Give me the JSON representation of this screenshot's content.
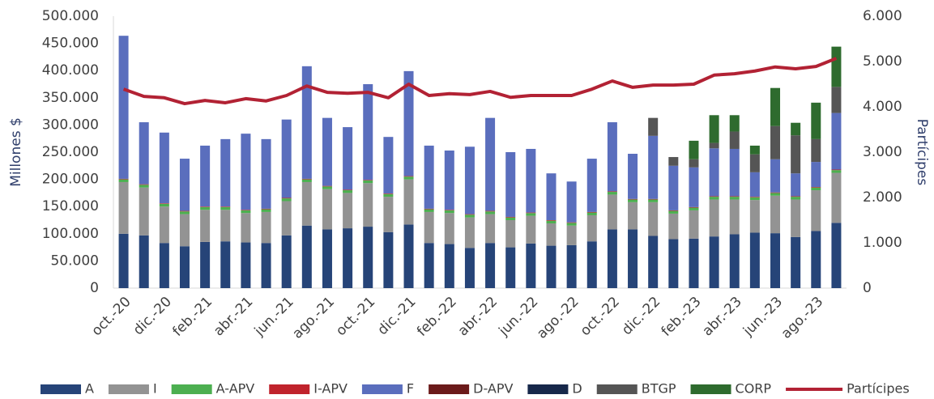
{
  "chart_data": {
    "type": "bar",
    "stacked": true,
    "y_label": "Millones $",
    "y2_label": "Partícipes",
    "categories": [
      "oct.-20",
      null,
      "dic.-20",
      null,
      "feb.-21",
      null,
      "abr.-21",
      null,
      "jun.-21",
      null,
      "ago.-21",
      null,
      "oct.-21",
      null,
      "dic.-21",
      null,
      "feb.-22",
      null,
      "abr.-22",
      null,
      "jun.-22",
      null,
      "ago.-22",
      null,
      "oct.-22",
      null,
      "dic.-22",
      null,
      "feb.-23",
      null,
      "abr.-23",
      null,
      "jun.-23",
      null,
      "ago.-23",
      null
    ],
    "ylim": [
      0,
      500000
    ],
    "yticks": [
      0,
      {
        "value": 50000,
        "label": "50.000"
      },
      {
        "value": 100000,
        "label": "100.000"
      },
      {
        "value": 150000,
        "label": "150.000"
      },
      {
        "value": 200000,
        "label": "200.000"
      },
      {
        "value": 250000,
        "label": "250.000"
      },
      {
        "value": 300000,
        "label": "300.000"
      },
      {
        "value": 350000,
        "label": "350.000"
      },
      {
        "value": 400000,
        "label": "400.000"
      },
      {
        "value": 450000,
        "label": "450.000"
      },
      {
        "value": 500000,
        "label": "500.000"
      }
    ],
    "y2lim": [
      0,
      6000
    ],
    "y2ticks": [
      0,
      {
        "value": 1000,
        "label": "1.000"
      },
      {
        "value": 2000,
        "label": "2.000"
      },
      {
        "value": 3000,
        "label": "3.000"
      },
      {
        "value": 4000,
        "label": "4.000"
      },
      {
        "value": 5000,
        "label": "5.000"
      },
      {
        "value": 6000,
        "label": "6.000"
      }
    ],
    "grid": false,
    "legend": "bottom",
    "series": [
      {
        "name": "A",
        "color": "#264478",
        "values": [
          100000,
          97000,
          83000,
          77000,
          85000,
          86000,
          84000,
          83000,
          97000,
          115000,
          108000,
          110000,
          113000,
          103000,
          117000,
          83000,
          81000,
          74000,
          83000,
          75000,
          82000,
          78000,
          79000,
          86000,
          108000,
          108000,
          96000,
          90000,
          91000,
          95000,
          99000,
          102000,
          101000,
          94000,
          105000,
          120000
        ]
      },
      {
        "name": "I",
        "color": "#939393",
        "values": [
          95000,
          88000,
          67000,
          59000,
          59000,
          58000,
          54000,
          57000,
          63000,
          80000,
          74000,
          65000,
          80000,
          65000,
          83000,
          57000,
          57000,
          56000,
          53000,
          50000,
          51000,
          41000,
          36000,
          48000,
          64000,
          50000,
          62000,
          47000,
          52000,
          68000,
          64000,
          60000,
          69000,
          69000,
          75000,
          92000
        ]
      },
      {
        "name": "A-APV",
        "color": "#4caf50",
        "values": [
          5000,
          5000,
          5000,
          5000,
          5000,
          5000,
          5000,
          5000,
          5000,
          5000,
          5000,
          5000,
          5000,
          5000,
          5000,
          5000,
          5000,
          5000,
          5000,
          5000,
          5000,
          5000,
          5000,
          5000,
          5000,
          5000,
          5000,
          5000,
          5000,
          5000,
          5000,
          5000,
          5000,
          5000,
          5000,
          5000
        ]
      },
      {
        "name": "I-APV",
        "color": "#c0232c",
        "values": [
          1000,
          1000,
          1000,
          1000,
          1000,
          1000,
          1000,
          1000,
          1000,
          1000,
          1000,
          1000,
          1000,
          1000,
          1000,
          1000,
          1000,
          1000,
          1000,
          1000,
          1000,
          1000,
          1000,
          1000,
          1000,
          1000,
          1000,
          1000,
          1000,
          1000,
          1000,
          1000,
          1000,
          1000,
          1000,
          1000
        ]
      },
      {
        "name": "F",
        "color": "#5a6ebd",
        "values": [
          263000,
          114000,
          130000,
          96000,
          112000,
          124000,
          140000,
          128000,
          144000,
          207000,
          125000,
          115000,
          176000,
          104000,
          193000,
          116000,
          109000,
          124000,
          171000,
          119000,
          117000,
          86000,
          75000,
          98000,
          127000,
          83000,
          116000,
          82000,
          73000,
          88000,
          87000,
          45000,
          61000,
          42000,
          46000,
          104000
        ]
      },
      {
        "name": "D-APV",
        "color": "#6b1a1a",
        "values": [
          0,
          0,
          0,
          0,
          0,
          0,
          0,
          0,
          0,
          0,
          0,
          0,
          0,
          0,
          0,
          0,
          0,
          0,
          0,
          0,
          0,
          0,
          0,
          0,
          0,
          0,
          0,
          0,
          0,
          0,
          0,
          0,
          0,
          0,
          0,
          0
        ]
      },
      {
        "name": "D",
        "color": "#17284a",
        "values": [
          0,
          0,
          0,
          0,
          0,
          0,
          0,
          0,
          0,
          0,
          0,
          0,
          0,
          0,
          0,
          0,
          0,
          0,
          0,
          0,
          0,
          0,
          0,
          0,
          0,
          0,
          0,
          0,
          0,
          0,
          0,
          0,
          0,
          0,
          0,
          0
        ]
      },
      {
        "name": "BTGP",
        "color": "#555555",
        "values": [
          0,
          0,
          0,
          0,
          0,
          0,
          0,
          0,
          0,
          0,
          0,
          0,
          0,
          0,
          0,
          0,
          0,
          0,
          0,
          0,
          0,
          0,
          0,
          0,
          0,
          0,
          33000,
          16000,
          15000,
          10000,
          32000,
          33000,
          61000,
          70000,
          42000,
          48000
        ]
      },
      {
        "name": "CORP",
        "color": "#2e6b2e",
        "values": [
          0,
          0,
          0,
          0,
          0,
          0,
          0,
          0,
          0,
          0,
          0,
          0,
          0,
          0,
          0,
          0,
          0,
          0,
          0,
          0,
          0,
          0,
          0,
          0,
          0,
          0,
          0,
          0,
          34000,
          51000,
          30000,
          16000,
          70000,
          23000,
          67000,
          74000
        ]
      },
      {
        "name": "Partícipes",
        "color": "#b22234",
        "type": "line",
        "axis": "y2",
        "values": [
          4390,
          4230,
          4200,
          4070,
          4140,
          4090,
          4180,
          4130,
          4250,
          4460,
          4320,
          4300,
          4320,
          4200,
          4500,
          4250,
          4290,
          4270,
          4340,
          4210,
          4250,
          4250,
          4250,
          4390,
          4570,
          4430,
          4480,
          4480,
          4500,
          4700,
          4730,
          4790,
          4880,
          4840,
          4890,
          5070
        ]
      }
    ]
  }
}
